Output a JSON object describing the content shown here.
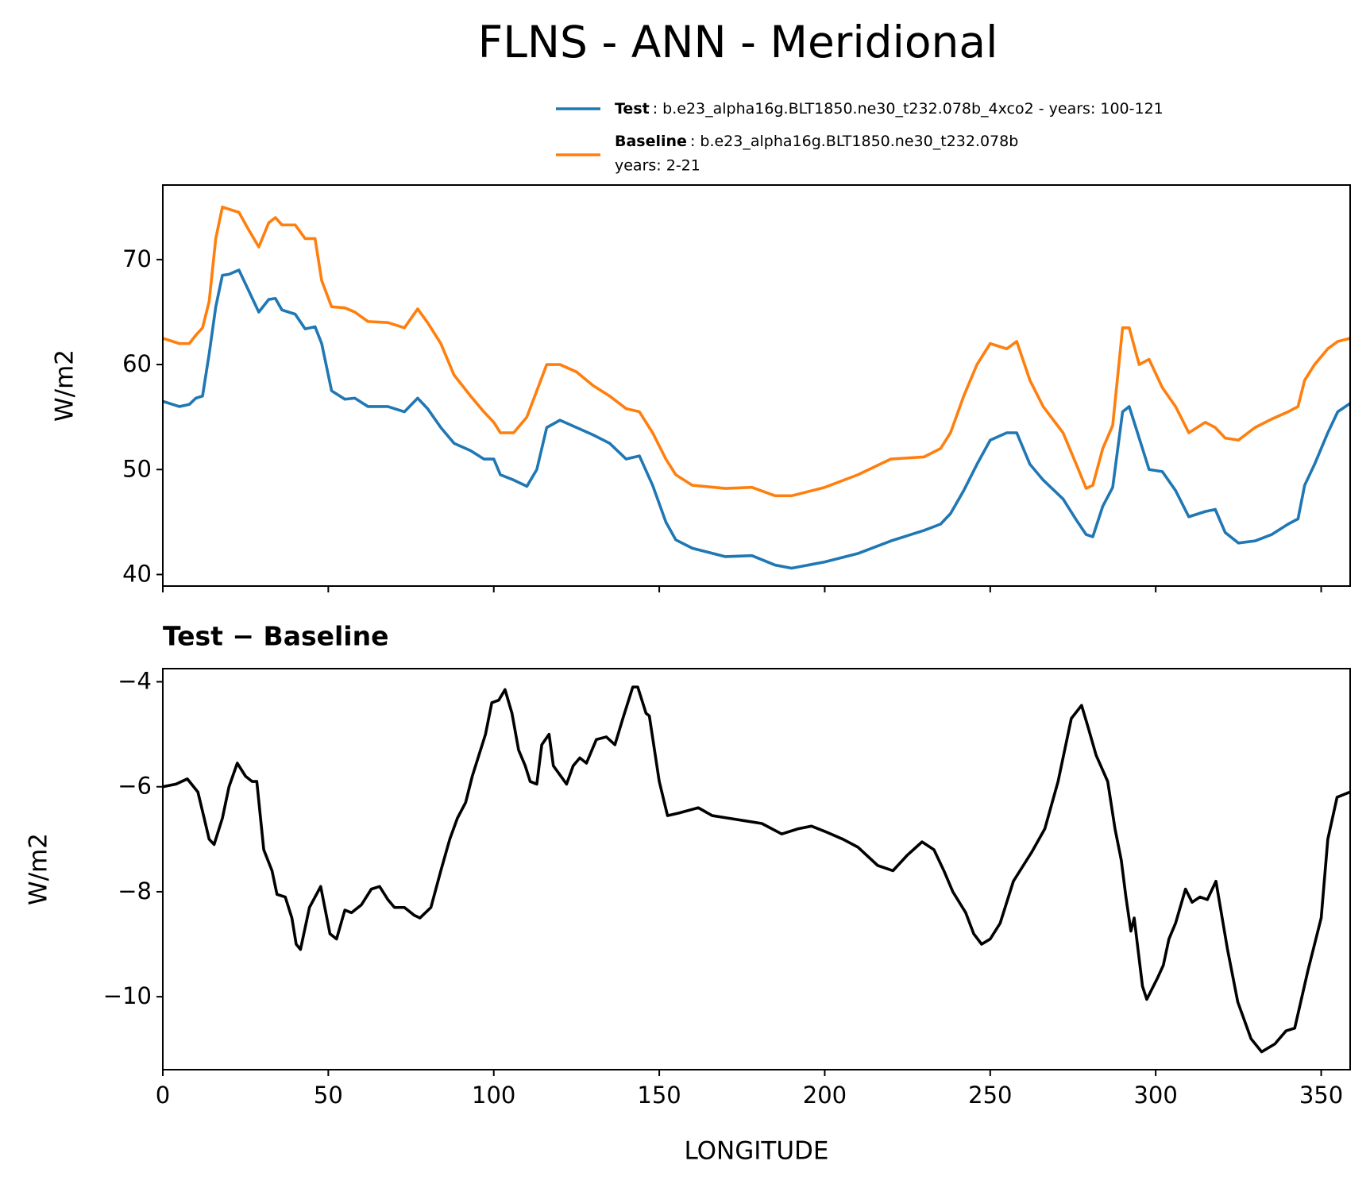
{
  "chart_data": [
    {
      "type": "line",
      "title": "FLNS - ANN - Meridional",
      "ylabel": "W/m2",
      "xlim": [
        0,
        358.75
      ],
      "xticks": [
        0,
        50,
        100,
        150,
        200,
        250,
        300,
        350
      ],
      "xtick_labels": false,
      "ylim": [
        38.9,
        77.1
      ],
      "yticks": [
        40,
        50,
        60,
        70
      ],
      "grid": false,
      "legend": "upper right",
      "x": [
        0,
        5,
        8,
        10,
        12,
        14,
        16,
        18,
        20,
        23,
        26,
        29,
        32,
        34,
        36,
        40,
        43,
        46,
        48,
        51,
        55,
        58,
        62,
        68,
        73,
        77,
        80,
        84,
        88,
        93,
        97,
        100,
        102,
        106,
        110,
        113,
        116,
        120,
        125,
        130,
        135,
        140,
        144,
        148,
        152,
        155,
        160,
        170,
        178,
        185,
        190,
        200,
        210,
        220,
        230,
        235,
        238,
        242,
        246,
        250,
        255,
        258,
        262,
        266,
        272,
        276,
        279,
        281,
        284,
        287,
        290,
        292,
        295,
        298,
        302,
        306,
        310,
        315,
        318,
        321,
        325,
        330,
        335,
        340,
        343,
        345,
        348,
        352,
        355,
        358.75
      ],
      "series": [
        {
          "name": "Test",
          "description": [
            ": b.e23_alpha16g.BLT1850.ne30_t232.078b_4xco2 - years: 100-121"
          ],
          "color": "#1f77b4",
          "values": [
            56.5,
            56,
            56.2,
            56.8,
            57,
            61,
            65.5,
            68.5,
            68.6,
            69,
            67,
            65,
            66.2,
            66.3,
            65.2,
            64.8,
            63.4,
            63.6,
            62,
            57.5,
            56.7,
            56.8,
            56,
            56,
            55.5,
            56.8,
            55.8,
            54,
            52.5,
            51.8,
            51,
            51,
            49.5,
            49,
            48.4,
            50,
            54,
            54.7,
            54,
            53.3,
            52.5,
            51,
            51.3,
            48.5,
            45,
            43.3,
            42.5,
            41.7,
            41.8,
            40.9,
            40.6,
            41.2,
            42,
            43.2,
            44.2,
            44.8,
            45.8,
            48,
            50.5,
            52.8,
            53.5,
            53.5,
            50.5,
            49,
            47.2,
            45.2,
            43.8,
            43.6,
            46.5,
            48.3,
            55.5,
            56,
            53,
            50,
            49.8,
            48,
            45.5,
            46,
            46.2,
            44,
            43,
            43.2,
            43.8,
            44.8,
            45.3,
            48.5,
            50.5,
            53.5,
            55.5,
            56.3
          ]
        },
        {
          "name": "Baseline",
          "description": [
            ": b.e23_alpha16g.BLT1850.ne30_t232.078b",
            "years: 2-21"
          ],
          "color": "#ff7f0e",
          "values": [
            62.5,
            62,
            62,
            62.8,
            63.5,
            66,
            72,
            75,
            74.8,
            74.5,
            72.8,
            71.2,
            73.5,
            74,
            73.3,
            73.3,
            72,
            72,
            68,
            65.5,
            65.4,
            65,
            64.1,
            64,
            63.5,
            65.3,
            64,
            62,
            59,
            57,
            55.5,
            54.5,
            53.5,
            53.5,
            55,
            57.5,
            60,
            60,
            59.3,
            58,
            57,
            55.8,
            55.5,
            53.5,
            51,
            49.5,
            48.5,
            48.2,
            48.3,
            47.5,
            47.5,
            48.3,
            49.5,
            51,
            51.2,
            52,
            53.5,
            57,
            60,
            62,
            61.5,
            62.2,
            58.5,
            56,
            53.5,
            50.5,
            48.2,
            48.5,
            52,
            54.2,
            63.5,
            63.5,
            60,
            60.5,
            57.8,
            56,
            53.5,
            54.5,
            54,
            53,
            52.8,
            54,
            54.8,
            55.5,
            56,
            58.5,
            60,
            61.5,
            62.2,
            62.5
          ]
        }
      ]
    },
    {
      "type": "line",
      "title": "Test − Baseline",
      "xlabel": "LONGITUDE",
      "ylabel": "W/m2",
      "xlim": [
        0,
        358.75
      ],
      "xticks": [
        0,
        50,
        100,
        150,
        200,
        250,
        300,
        350
      ],
      "xtick_labels": true,
      "ylim": [
        -11.39,
        -3.75
      ],
      "yticks": [
        {
          "value": -10,
          "label": "−10"
        },
        {
          "value": -8,
          "label": "−8"
        },
        {
          "value": -6,
          "label": "−6"
        },
        {
          "value": -4,
          "label": "−4"
        }
      ],
      "grid": false,
      "x": [
        0,
        4,
        7.4,
        10.6,
        12.5,
        14,
        15.5,
        18,
        20,
        22.5,
        25,
        27,
        28.4,
        30.5,
        33,
        34.5,
        37,
        39,
        40.3,
        41.6,
        44.3,
        47.7,
        50.5,
        52.5,
        55,
        57,
        60,
        63,
        65.5,
        68,
        70,
        73,
        76,
        77.7,
        81,
        84,
        86.7,
        89,
        91.5,
        93.5,
        95.5,
        97.5,
        99.4,
        101.5,
        103.4,
        105.5,
        107.5,
        109.5,
        111,
        113,
        114.5,
        116.7,
        118,
        122,
        124,
        126,
        128,
        131,
        134,
        136.6,
        139,
        142,
        143.5,
        146,
        147,
        150,
        152.5,
        156,
        161.8,
        166,
        171,
        176,
        181,
        187,
        192,
        196,
        200,
        205.5,
        210,
        216,
        220.6,
        225,
        229.4,
        233,
        236,
        238.7,
        242.6,
        245,
        247.4,
        250,
        253,
        257,
        262.5,
        266.5,
        270.5,
        274.5,
        277.6,
        279.5,
        282,
        285.5,
        287.7,
        289.6,
        291,
        292.5,
        293.5,
        296,
        297.3,
        300.5,
        302.3,
        304,
        306,
        309,
        311,
        313.4,
        315.6,
        318.2,
        321.7,
        324.8,
        328.8,
        332,
        336,
        339.4,
        342,
        346,
        350,
        352,
        354.8,
        358.75
      ],
      "series": [
        {
          "color": "#000000",
          "values": [
            -6,
            -5.95,
            -5.85,
            -6.1,
            -6.6,
            -7,
            -7.1,
            -6.6,
            -6,
            -5.55,
            -5.8,
            -5.9,
            -5.9,
            -7.2,
            -7.6,
            -8.05,
            -8.1,
            -8.5,
            -9,
            -9.1,
            -8.3,
            -7.9,
            -8.8,
            -8.9,
            -8.35,
            -8.4,
            -8.25,
            -7.95,
            -7.9,
            -8.15,
            -8.3,
            -8.3,
            -8.45,
            -8.5,
            -8.3,
            -7.6,
            -7,
            -6.6,
            -6.3,
            -5.8,
            -5.4,
            -5,
            -4.4,
            -4.35,
            -4.15,
            -4.6,
            -5.3,
            -5.6,
            -5.9,
            -5.95,
            -5.2,
            -5,
            -5.6,
            -5.95,
            -5.6,
            -5.45,
            -5.55,
            -5.1,
            -5.05,
            -5.2,
            -4.7,
            -4.1,
            -4.1,
            -4.6,
            -4.65,
            -5.9,
            -6.55,
            -6.5,
            -6.4,
            -6.55,
            -6.6,
            -6.65,
            -6.7,
            -6.9,
            -6.8,
            -6.75,
            -6.85,
            -7,
            -7.15,
            -7.5,
            -7.6,
            -7.3,
            -7.05,
            -7.2,
            -7.6,
            -8,
            -8.4,
            -8.8,
            -9,
            -8.9,
            -8.6,
            -7.8,
            -7.25,
            -6.8,
            -5.9,
            -4.7,
            -4.45,
            -4.85,
            -5.4,
            -5.9,
            -6.8,
            -7.4,
            -8.1,
            -8.75,
            -8.5,
            -9.8,
            -10.05,
            -9.65,
            -9.4,
            -8.9,
            -8.6,
            -7.95,
            -8.2,
            -8.1,
            -8.15,
            -7.8,
            -9.1,
            -10.1,
            -10.8,
            -11.05,
            -10.9,
            -10.65,
            -10.6,
            -9.5,
            -8.5,
            -7,
            -6.2,
            -6.1
          ]
        }
      ]
    }
  ]
}
